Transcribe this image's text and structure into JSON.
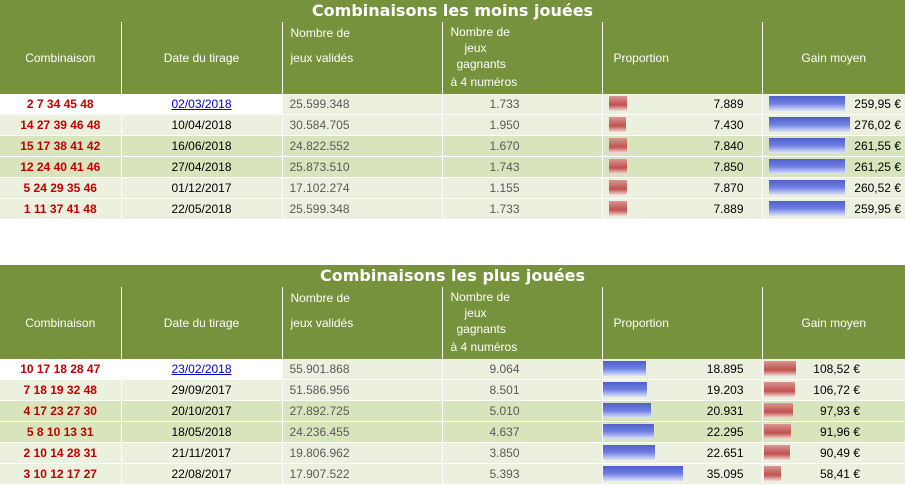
{
  "colors": {
    "header_green": "#76923c",
    "row_light": "#ebf1de",
    "row_dark": "#d8e4bc",
    "combo_red": "#c00000",
    "bar_red": "#c0504d",
    "bar_blue": "#5b6bd6"
  },
  "headers": {
    "combinaison": "Combinaison",
    "date": "Date du tirage",
    "jeux_1": "Nombre de",
    "jeux_2": "jeux validés",
    "gagnants_1": "Nombre de",
    "gagnants_2": "jeux",
    "gagnants_3": "gagnants",
    "gagnants_4": "à 4 numéros",
    "proportion": "Proportion",
    "gain": "Gain moyen"
  },
  "moins": {
    "title": "Combinaisons les moins jouées",
    "rows": [
      {
        "combo": "2 7 34 45 48",
        "date": "02/03/2018",
        "link": true,
        "jeux": "25.599.348",
        "gagnants": "1.733",
        "proportion": "7.889",
        "prop_level": 0.22,
        "gain": "259,95 €",
        "gain_level": 0.9
      },
      {
        "combo": "14 27 39 46 48",
        "date": "10/04/2018",
        "link": false,
        "jeux": "30.584.705",
        "gagnants": "1.950",
        "proportion": "7.430",
        "prop_level": 0.21,
        "gain": "276,02 €",
        "gain_level": 0.96
      },
      {
        "combo": "15 17 38 41 42",
        "date": "16/06/2018",
        "link": false,
        "jeux": "24.822.552",
        "gagnants": "1.670",
        "proportion": "7.840",
        "prop_level": 0.22,
        "gain": "261,55 €",
        "gain_level": 0.91
      },
      {
        "combo": "12 24 40 41 46",
        "date": "27/04/2018",
        "link": false,
        "jeux": "25.873.510",
        "gagnants": "1.743",
        "proportion": "7.850",
        "prop_level": 0.22,
        "gain": "261,25 €",
        "gain_level": 0.91
      },
      {
        "combo": "5 24 29 35 46",
        "date": "01/12/2017",
        "link": false,
        "jeux": "17.102.274",
        "gagnants": "1.155",
        "proportion": "7.870",
        "prop_level": 0.22,
        "gain": "260,52 €",
        "gain_level": 0.9
      },
      {
        "combo": "1 11 37 41 48",
        "date": "22/05/2018",
        "link": false,
        "jeux": "25.599.348",
        "gagnants": "1.733",
        "proportion": "7.889",
        "prop_level": 0.22,
        "gain": "259,95 €",
        "gain_level": 0.9
      }
    ]
  },
  "plus": {
    "title": "Combinaisons les plus jouées",
    "rows": [
      {
        "combo": "10 17 18 28 47",
        "date": "23/02/2018",
        "link": true,
        "jeux": "55.901.868",
        "gagnants": "9.064",
        "proportion": "18.895",
        "prop_level": 0.54,
        "gain": "108,52 €",
        "gain_level": 0.38
      },
      {
        "combo": "7 18 19 32 48",
        "date": "29/09/2017",
        "link": false,
        "jeux": "51.586.956",
        "gagnants": "8.501",
        "proportion": "19.203",
        "prop_level": 0.55,
        "gain": "106,72 €",
        "gain_level": 0.37
      },
      {
        "combo": "4 17 23 27 30",
        "date": "20/10/2017",
        "link": false,
        "jeux": "27.892.725",
        "gagnants": "5.010",
        "proportion": "20.931",
        "prop_level": 0.6,
        "gain": "97,93 €",
        "gain_level": 0.34
      },
      {
        "combo": "5 8 10 13 31",
        "date": "18/05/2018",
        "link": false,
        "jeux": "24.236.455",
        "gagnants": "4.637",
        "proportion": "22.295",
        "prop_level": 0.64,
        "gain": "91,96 €",
        "gain_level": 0.32
      },
      {
        "combo": "2 10 14 28 31",
        "date": "21/11/2017",
        "link": false,
        "jeux": "19.806.962",
        "gagnants": "3.850",
        "proportion": "22.651",
        "prop_level": 0.65,
        "gain": "90,49 €",
        "gain_level": 0.31
      },
      {
        "combo": "3 10 12 17 27",
        "date": "22/08/2017",
        "link": false,
        "jeux": "17.907.522",
        "gagnants": "5.393",
        "proportion": "35.095",
        "prop_level": 1.0,
        "gain": "58,41 €",
        "gain_level": 0.2
      }
    ]
  }
}
